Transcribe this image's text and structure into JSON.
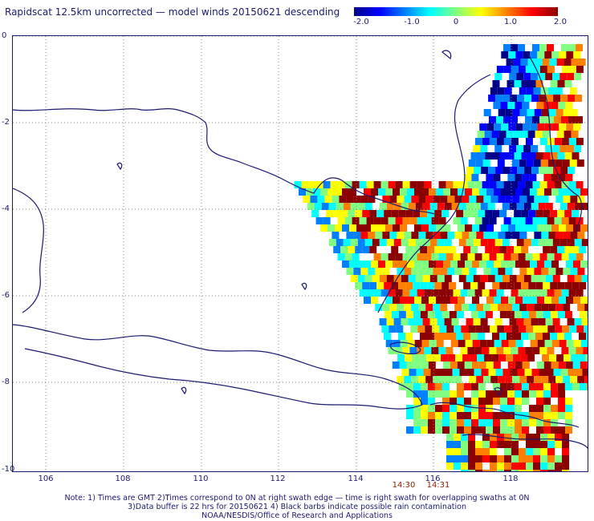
{
  "title": "Rapidscat 12.5km uncorrected — model winds 20150621 descending",
  "colorbar": {
    "ticks": [
      "-2.0",
      "-1.0",
      "0",
      "1.0",
      "2.0"
    ],
    "colors": [
      "#00008a",
      "#0000ff",
      "#0080ff",
      "#00ffff",
      "#80ff80",
      "#ffff00",
      "#ff8000",
      "#ff0000",
      "#8b0000"
    ]
  },
  "axes": {
    "lat_ticks": [
      "0",
      "-2",
      "-4",
      "-6",
      "-8",
      "-10"
    ],
    "lon_ticks": [
      "106",
      "108",
      "110",
      "112",
      "114",
      "116",
      "118"
    ],
    "grid": true
  },
  "times": [
    "14:30",
    "14:31"
  ],
  "notes": {
    "line1": "Note: 1) Times are GMT 2)Times correspond to 0N at right swath edge — time is right swath for overlapping swaths at 0N",
    "line2": "3)Data buffer is 22 hrs for 20150621 4) Black barbs indicate possible rain contamination",
    "line3": "NOAA/NESDIS/Office of Research and Applications"
  },
  "colors": {
    "coastline": "#1a1a6e",
    "grid": "#888888",
    "time_label": "#8b2500"
  }
}
